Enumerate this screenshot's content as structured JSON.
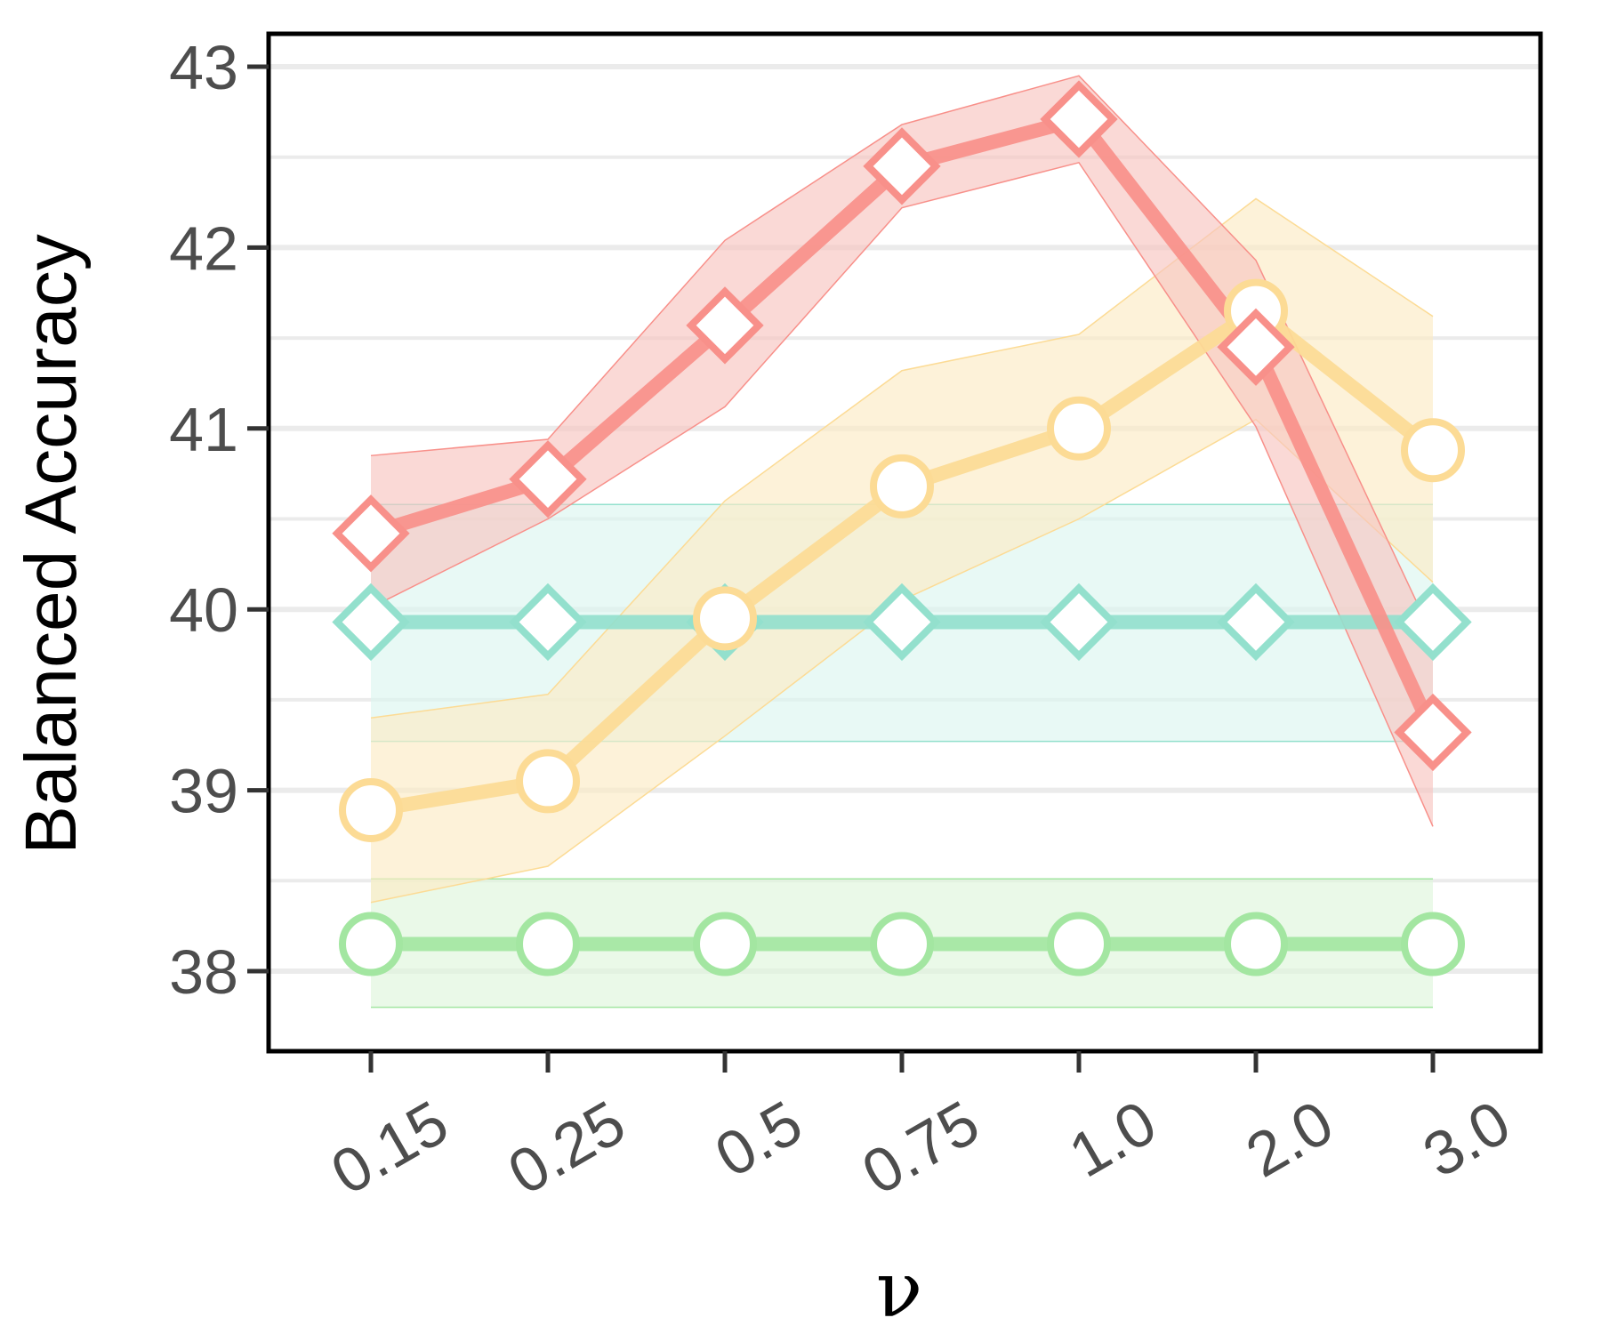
{
  "chart_data": {
    "type": "line",
    "xlabel": "ν",
    "ylabel": "Balanced Accuracy",
    "categories": [
      "0.15",
      "0.25",
      "0.5",
      "0.75",
      "1.0",
      "2.0",
      "3.0"
    ],
    "y_ticks": [
      "38",
      "39",
      "40",
      "41",
      "42",
      "43"
    ],
    "ylim": [
      37.55,
      43.2
    ],
    "grid": "horizontal major and minor lines",
    "legend": "none",
    "series": [
      {
        "color": "#93e0cd",
        "band_color": "#dbf6ef",
        "marker": "diamond",
        "values": [
          39.93,
          39.93,
          39.93,
          39.93,
          39.93,
          39.93,
          39.93
        ],
        "lower": [
          39.27,
          39.27,
          39.27,
          39.27,
          39.27,
          39.27,
          39.27
        ],
        "upper": [
          40.58,
          40.58,
          40.58,
          40.58,
          40.58,
          40.58,
          40.58
        ]
      },
      {
        "color": "#a3e6a1",
        "band_color": "#def6dc",
        "marker": "circle",
        "values": [
          38.15,
          38.15,
          38.15,
          38.15,
          38.15,
          38.15,
          38.15
        ],
        "lower": [
          37.8,
          37.8,
          37.8,
          37.8,
          37.8,
          37.8,
          37.8
        ],
        "upper": [
          38.51,
          38.51,
          38.51,
          38.51,
          38.51,
          38.51,
          38.51
        ]
      },
      {
        "color": "#fcdb95",
        "band_color": "#fcebc5",
        "marker": "circle",
        "values": [
          38.89,
          39.05,
          39.95,
          40.68,
          41.0,
          41.65,
          40.88
        ],
        "lower": [
          38.38,
          38.58,
          39.3,
          40.05,
          40.5,
          41.05,
          40.15
        ],
        "upper": [
          39.4,
          39.53,
          40.6,
          41.32,
          41.52,
          42.27,
          41.62
        ]
      },
      {
        "color": "#f8908a",
        "band_color": "#f8c4c0",
        "marker": "diamond",
        "values": [
          40.42,
          40.72,
          41.57,
          42.45,
          42.71,
          41.45,
          39.32
        ],
        "lower": [
          40.01,
          40.5,
          41.12,
          42.22,
          42.47,
          41.01,
          38.8
        ],
        "upper": [
          40.85,
          40.94,
          42.04,
          42.68,
          42.95,
          41.93,
          39.85
        ]
      }
    ]
  }
}
